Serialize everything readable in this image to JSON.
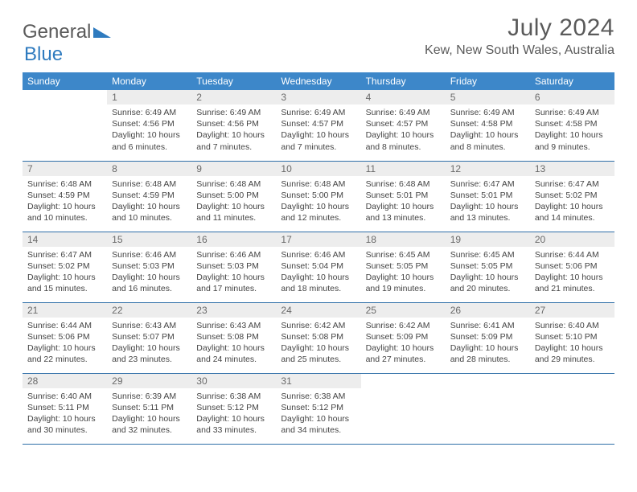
{
  "brand": {
    "part1": "General",
    "part2": "Blue"
  },
  "title": "July 2024",
  "location": "Kew, New South Wales, Australia",
  "colors": {
    "header_bg": "#3d87c9",
    "header_text": "#ffffff",
    "daynum_bg": "#ededed",
    "row_border": "#2f6fa8",
    "text": "#444444",
    "title_text": "#5a5a5a"
  },
  "day_headers": [
    "Sunday",
    "Monday",
    "Tuesday",
    "Wednesday",
    "Thursday",
    "Friday",
    "Saturday"
  ],
  "weeks": [
    [
      {
        "n": "",
        "sunrise": "",
        "sunset": "",
        "daylight": ""
      },
      {
        "n": "1",
        "sunrise": "Sunrise: 6:49 AM",
        "sunset": "Sunset: 4:56 PM",
        "daylight": "Daylight: 10 hours and 6 minutes."
      },
      {
        "n": "2",
        "sunrise": "Sunrise: 6:49 AM",
        "sunset": "Sunset: 4:56 PM",
        "daylight": "Daylight: 10 hours and 7 minutes."
      },
      {
        "n": "3",
        "sunrise": "Sunrise: 6:49 AM",
        "sunset": "Sunset: 4:57 PM",
        "daylight": "Daylight: 10 hours and 7 minutes."
      },
      {
        "n": "4",
        "sunrise": "Sunrise: 6:49 AM",
        "sunset": "Sunset: 4:57 PM",
        "daylight": "Daylight: 10 hours and 8 minutes."
      },
      {
        "n": "5",
        "sunrise": "Sunrise: 6:49 AM",
        "sunset": "Sunset: 4:58 PM",
        "daylight": "Daylight: 10 hours and 8 minutes."
      },
      {
        "n": "6",
        "sunrise": "Sunrise: 6:49 AM",
        "sunset": "Sunset: 4:58 PM",
        "daylight": "Daylight: 10 hours and 9 minutes."
      }
    ],
    [
      {
        "n": "7",
        "sunrise": "Sunrise: 6:48 AM",
        "sunset": "Sunset: 4:59 PM",
        "daylight": "Daylight: 10 hours and 10 minutes."
      },
      {
        "n": "8",
        "sunrise": "Sunrise: 6:48 AM",
        "sunset": "Sunset: 4:59 PM",
        "daylight": "Daylight: 10 hours and 10 minutes."
      },
      {
        "n": "9",
        "sunrise": "Sunrise: 6:48 AM",
        "sunset": "Sunset: 5:00 PM",
        "daylight": "Daylight: 10 hours and 11 minutes."
      },
      {
        "n": "10",
        "sunrise": "Sunrise: 6:48 AM",
        "sunset": "Sunset: 5:00 PM",
        "daylight": "Daylight: 10 hours and 12 minutes."
      },
      {
        "n": "11",
        "sunrise": "Sunrise: 6:48 AM",
        "sunset": "Sunset: 5:01 PM",
        "daylight": "Daylight: 10 hours and 13 minutes."
      },
      {
        "n": "12",
        "sunrise": "Sunrise: 6:47 AM",
        "sunset": "Sunset: 5:01 PM",
        "daylight": "Daylight: 10 hours and 13 minutes."
      },
      {
        "n": "13",
        "sunrise": "Sunrise: 6:47 AM",
        "sunset": "Sunset: 5:02 PM",
        "daylight": "Daylight: 10 hours and 14 minutes."
      }
    ],
    [
      {
        "n": "14",
        "sunrise": "Sunrise: 6:47 AM",
        "sunset": "Sunset: 5:02 PM",
        "daylight": "Daylight: 10 hours and 15 minutes."
      },
      {
        "n": "15",
        "sunrise": "Sunrise: 6:46 AM",
        "sunset": "Sunset: 5:03 PM",
        "daylight": "Daylight: 10 hours and 16 minutes."
      },
      {
        "n": "16",
        "sunrise": "Sunrise: 6:46 AM",
        "sunset": "Sunset: 5:03 PM",
        "daylight": "Daylight: 10 hours and 17 minutes."
      },
      {
        "n": "17",
        "sunrise": "Sunrise: 6:46 AM",
        "sunset": "Sunset: 5:04 PM",
        "daylight": "Daylight: 10 hours and 18 minutes."
      },
      {
        "n": "18",
        "sunrise": "Sunrise: 6:45 AM",
        "sunset": "Sunset: 5:05 PM",
        "daylight": "Daylight: 10 hours and 19 minutes."
      },
      {
        "n": "19",
        "sunrise": "Sunrise: 6:45 AM",
        "sunset": "Sunset: 5:05 PM",
        "daylight": "Daylight: 10 hours and 20 minutes."
      },
      {
        "n": "20",
        "sunrise": "Sunrise: 6:44 AM",
        "sunset": "Sunset: 5:06 PM",
        "daylight": "Daylight: 10 hours and 21 minutes."
      }
    ],
    [
      {
        "n": "21",
        "sunrise": "Sunrise: 6:44 AM",
        "sunset": "Sunset: 5:06 PM",
        "daylight": "Daylight: 10 hours and 22 minutes."
      },
      {
        "n": "22",
        "sunrise": "Sunrise: 6:43 AM",
        "sunset": "Sunset: 5:07 PM",
        "daylight": "Daylight: 10 hours and 23 minutes."
      },
      {
        "n": "23",
        "sunrise": "Sunrise: 6:43 AM",
        "sunset": "Sunset: 5:08 PM",
        "daylight": "Daylight: 10 hours and 24 minutes."
      },
      {
        "n": "24",
        "sunrise": "Sunrise: 6:42 AM",
        "sunset": "Sunset: 5:08 PM",
        "daylight": "Daylight: 10 hours and 25 minutes."
      },
      {
        "n": "25",
        "sunrise": "Sunrise: 6:42 AM",
        "sunset": "Sunset: 5:09 PM",
        "daylight": "Daylight: 10 hours and 27 minutes."
      },
      {
        "n": "26",
        "sunrise": "Sunrise: 6:41 AM",
        "sunset": "Sunset: 5:09 PM",
        "daylight": "Daylight: 10 hours and 28 minutes."
      },
      {
        "n": "27",
        "sunrise": "Sunrise: 6:40 AM",
        "sunset": "Sunset: 5:10 PM",
        "daylight": "Daylight: 10 hours and 29 minutes."
      }
    ],
    [
      {
        "n": "28",
        "sunrise": "Sunrise: 6:40 AM",
        "sunset": "Sunset: 5:11 PM",
        "daylight": "Daylight: 10 hours and 30 minutes."
      },
      {
        "n": "29",
        "sunrise": "Sunrise: 6:39 AM",
        "sunset": "Sunset: 5:11 PM",
        "daylight": "Daylight: 10 hours and 32 minutes."
      },
      {
        "n": "30",
        "sunrise": "Sunrise: 6:38 AM",
        "sunset": "Sunset: 5:12 PM",
        "daylight": "Daylight: 10 hours and 33 minutes."
      },
      {
        "n": "31",
        "sunrise": "Sunrise: 6:38 AM",
        "sunset": "Sunset: 5:12 PM",
        "daylight": "Daylight: 10 hours and 34 minutes."
      },
      {
        "n": "",
        "sunrise": "",
        "sunset": "",
        "daylight": ""
      },
      {
        "n": "",
        "sunrise": "",
        "sunset": "",
        "daylight": ""
      },
      {
        "n": "",
        "sunrise": "",
        "sunset": "",
        "daylight": ""
      }
    ]
  ]
}
